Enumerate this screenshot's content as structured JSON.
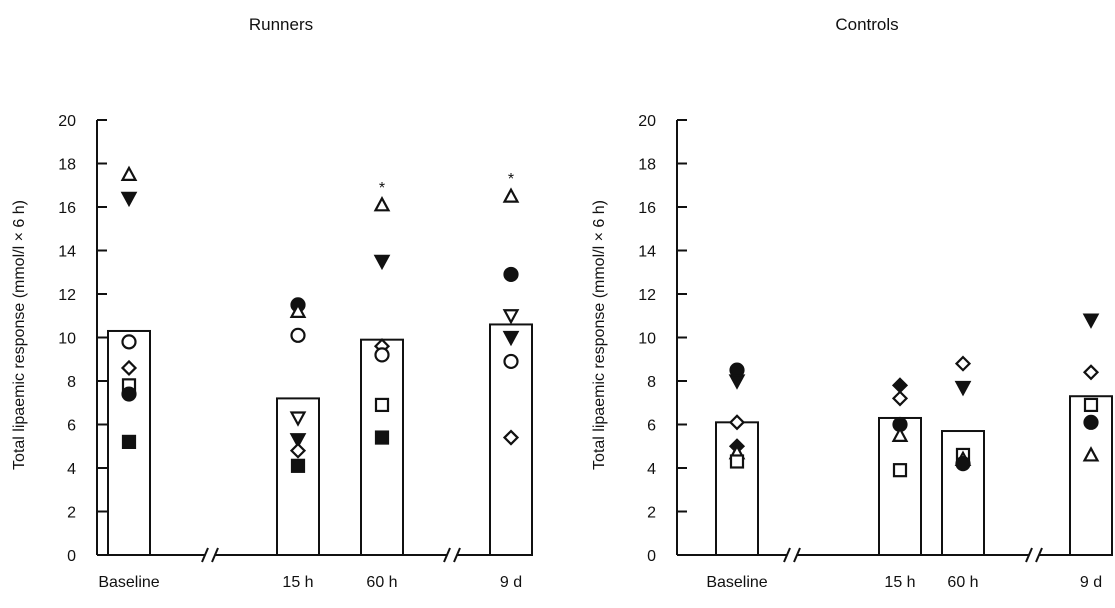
{
  "chart_data": [
    {
      "type": "bar",
      "title": "Runners",
      "ylabel": "Total lipaemic response (mmol/l × 6 h)",
      "xlabel": "",
      "ylim": [
        0,
        20
      ],
      "yticks": [
        "0",
        "2",
        "4",
        "6",
        "8",
        "10",
        "12",
        "14",
        "16",
        "18",
        "20"
      ],
      "axis_breaks": 2,
      "categories": [
        "Baseline",
        "15 h",
        "60 h",
        "9 d"
      ],
      "values": [
        10.3,
        7.2,
        9.9,
        10.6
      ],
      "annotations": [
        "",
        "",
        "*",
        "*"
      ],
      "points": [
        [
          {
            "y": 17.5,
            "marker": "triangle-up-open"
          },
          {
            "y": 16.4,
            "marker": "triangle-down-filled"
          },
          {
            "y": 9.8,
            "marker": "circle-open"
          },
          {
            "y": 8.6,
            "marker": "diamond-open"
          },
          {
            "y": 7.8,
            "marker": "square-open"
          },
          {
            "y": 7.4,
            "marker": "circle-filled"
          },
          {
            "y": 5.2,
            "marker": "square-filled"
          }
        ],
        [
          {
            "y": 11.5,
            "marker": "circle-filled"
          },
          {
            "y": 11.2,
            "marker": "triangle-up-open"
          },
          {
            "y": 10.1,
            "marker": "circle-open"
          },
          {
            "y": 6.3,
            "marker": "triangle-down-open"
          },
          {
            "y": 5.3,
            "marker": "triangle-down-filled"
          },
          {
            "y": 4.8,
            "marker": "diamond-open"
          },
          {
            "y": 4.1,
            "marker": "square-filled"
          }
        ],
        [
          {
            "y": 16.1,
            "marker": "triangle-up-open"
          },
          {
            "y": 13.5,
            "marker": "triangle-down-filled"
          },
          {
            "y": 9.6,
            "marker": "diamond-open"
          },
          {
            "y": 9.2,
            "marker": "circle-open"
          },
          {
            "y": 6.9,
            "marker": "square-open"
          },
          {
            "y": 5.4,
            "marker": "square-filled"
          }
        ],
        [
          {
            "y": 16.5,
            "marker": "triangle-up-open"
          },
          {
            "y": 12.9,
            "marker": "circle-filled"
          },
          {
            "y": 11.0,
            "marker": "triangle-down-open"
          },
          {
            "y": 10.0,
            "marker": "triangle-down-filled"
          },
          {
            "y": 8.9,
            "marker": "circle-open"
          },
          {
            "y": 5.4,
            "marker": "diamond-open"
          }
        ]
      ]
    },
    {
      "type": "bar",
      "title": "Controls",
      "ylabel": "Total lipaemic response (mmol/l × 6 h)",
      "xlabel": "",
      "ylim": [
        0,
        20
      ],
      "yticks": [
        "0",
        "2",
        "4",
        "6",
        "8",
        "10",
        "12",
        "14",
        "16",
        "18",
        "20"
      ],
      "axis_breaks": 2,
      "categories": [
        "Baseline",
        "15 h",
        "60 h",
        "9 d"
      ],
      "values": [
        6.1,
        6.3,
        5.7,
        7.3
      ],
      "annotations": [
        "",
        "",
        "",
        ""
      ],
      "points": [
        [
          {
            "y": 8.5,
            "marker": "circle-filled"
          },
          {
            "y": 8.0,
            "marker": "triangle-down-filled"
          },
          {
            "y": 6.1,
            "marker": "diamond-open"
          },
          {
            "y": 5.0,
            "marker": "diamond-filled"
          },
          {
            "y": 4.7,
            "marker": "triangle-up-open"
          },
          {
            "y": 4.3,
            "marker": "square-open"
          }
        ],
        [
          {
            "y": 7.8,
            "marker": "diamond-filled"
          },
          {
            "y": 7.2,
            "marker": "diamond-open"
          },
          {
            "y": 6.0,
            "marker": "circle-filled"
          },
          {
            "y": 5.5,
            "marker": "triangle-up-open"
          },
          {
            "y": 3.9,
            "marker": "square-open"
          }
        ],
        [
          {
            "y": 8.8,
            "marker": "diamond-open"
          },
          {
            "y": 7.7,
            "marker": "triangle-down-filled"
          },
          {
            "y": 4.6,
            "marker": "square-open"
          },
          {
            "y": 4.4,
            "marker": "triangle-up-open"
          },
          {
            "y": 4.2,
            "marker": "circle-filled"
          }
        ],
        [
          {
            "y": 10.8,
            "marker": "triangle-down-filled"
          },
          {
            "y": 8.4,
            "marker": "diamond-open"
          },
          {
            "y": 6.9,
            "marker": "square-open"
          },
          {
            "y": 6.1,
            "marker": "circle-filled"
          },
          {
            "y": 4.6,
            "marker": "triangle-up-open"
          }
        ]
      ]
    }
  ]
}
